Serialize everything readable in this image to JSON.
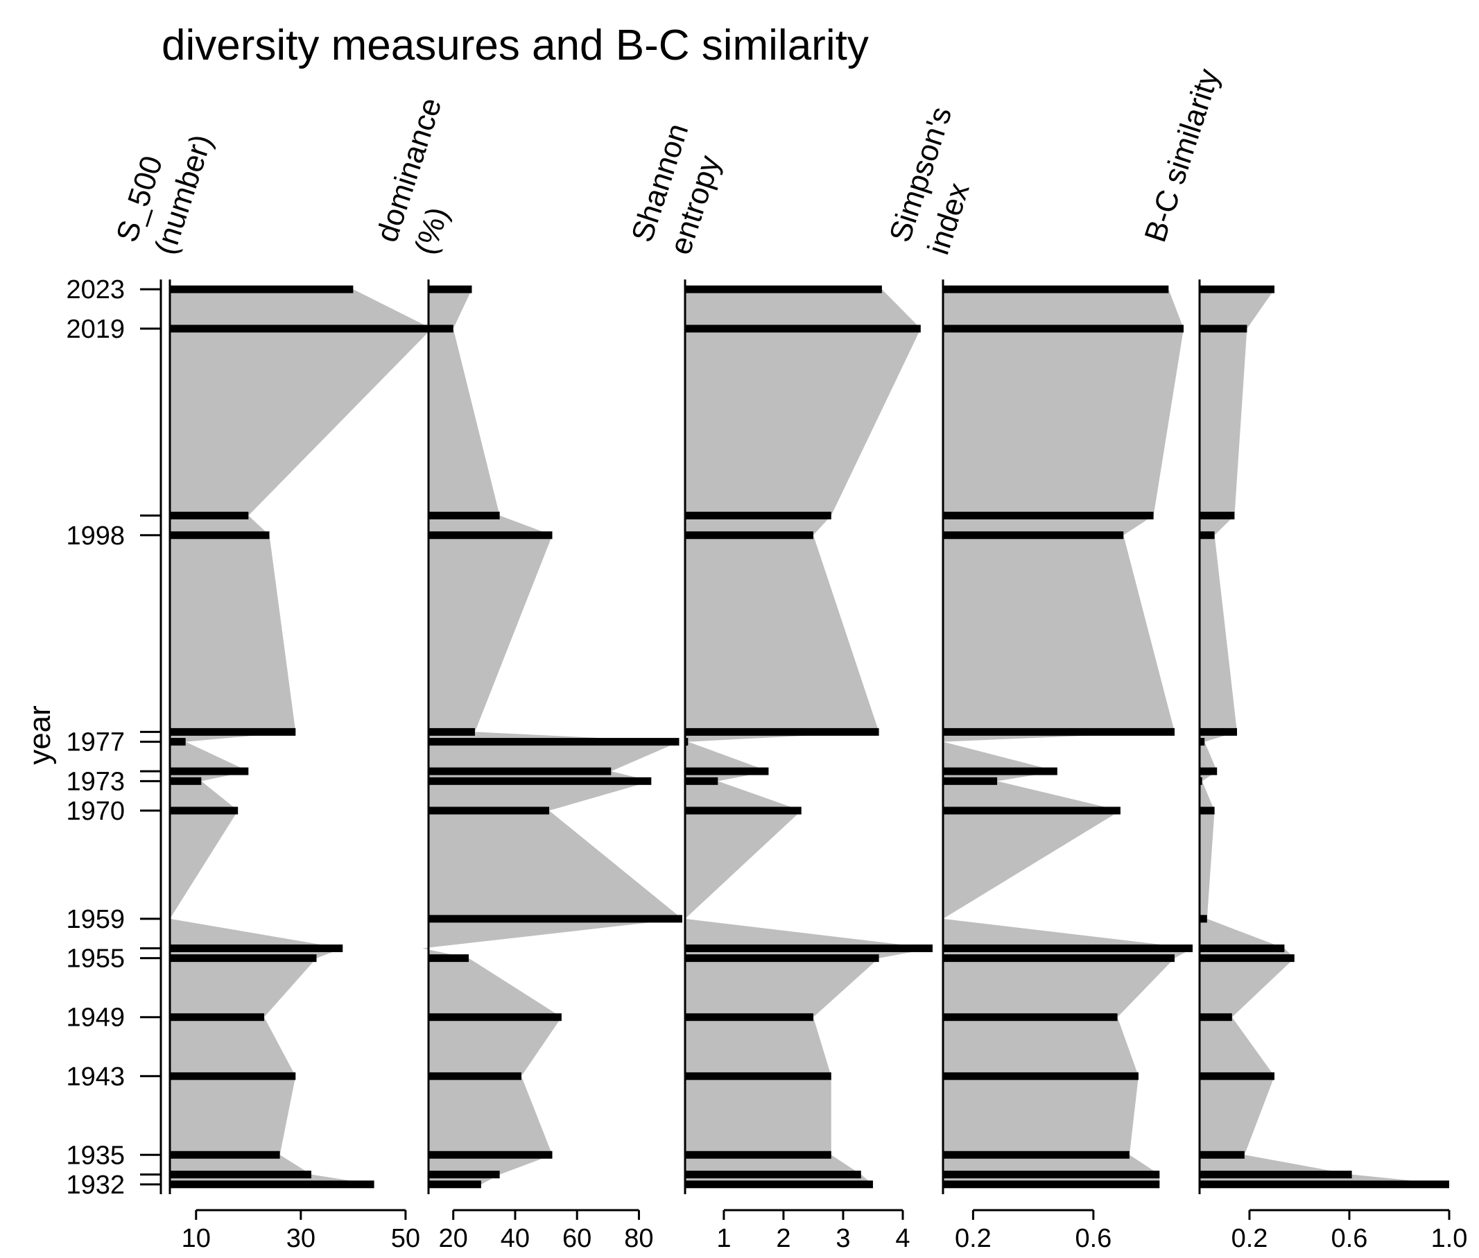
{
  "chart_data": {
    "type": "stratigraphic-area",
    "title": "diversity measures and B-C similarity",
    "ylabel": "year",
    "ylim": [
      1931,
      2024
    ],
    "y_ticks": [
      2023,
      2019,
      1998,
      1977,
      1973,
      1970,
      1959,
      1955,
      1949,
      1943,
      1935,
      1932
    ],
    "years": [
      2023,
      2019,
      2000,
      1998,
      1978,
      1977,
      1974,
      1973,
      1970,
      1959,
      1956,
      1955,
      1949,
      1943,
      1935,
      1933,
      1932
    ],
    "bar_color": "#000000",
    "area_color": "#bebebe",
    "panels": [
      {
        "label_lines": [
          "S_500",
          "(number)"
        ],
        "xlim": [
          5,
          52
        ],
        "ticks": [
          10,
          30,
          50
        ],
        "tick_labels": [
          "10",
          "30",
          "50"
        ],
        "values": [
          40,
          55,
          20,
          24,
          29,
          8,
          20,
          11,
          18,
          5,
          38,
          33,
          23,
          29,
          26,
          32,
          44
        ]
      },
      {
        "label_lines": [
          "dominance",
          "(%)"
        ],
        "xlim": [
          12,
          92
        ],
        "ticks": [
          20,
          40,
          60,
          80
        ],
        "tick_labels": [
          "20",
          "40",
          "60",
          "80"
        ],
        "values": [
          26,
          20,
          35,
          52,
          27,
          93,
          71,
          84,
          51,
          94,
          10,
          25,
          55,
          42,
          52,
          35,
          29
        ]
      },
      {
        "label_lines": [
          "Shannon",
          "entropy"
        ],
        "xlim": [
          0.35,
          4.5
        ],
        "ticks": [
          1,
          2,
          3,
          4
        ],
        "tick_labels": [
          "1",
          "2",
          "3",
          "4"
        ],
        "values": [
          3.65,
          4.3,
          2.8,
          2.5,
          3.6,
          0.4,
          1.75,
          0.9,
          2.3,
          0.35,
          4.5,
          3.6,
          2.5,
          2.8,
          2.8,
          3.3,
          3.5
        ]
      },
      {
        "label_lines": [
          "Simpson's",
          "index"
        ],
        "xlim": [
          0.1,
          0.93
        ],
        "ticks": [
          0.2,
          0.6
        ],
        "tick_labels": [
          "0.2",
          "0.6"
        ],
        "values": [
          0.85,
          0.9,
          0.8,
          0.7,
          0.87,
          0.1,
          0.48,
          0.28,
          0.69,
          0.1,
          0.93,
          0.87,
          0.68,
          0.75,
          0.72,
          0.82,
          0.82
        ]
      },
      {
        "label_lines": [
          "B-C similarity"
        ],
        "xlim": [
          0,
          1.0
        ],
        "ticks": [
          0.2,
          0.6,
          1.0
        ],
        "tick_labels": [
          "0.2",
          "0.6",
          "1.0"
        ],
        "values": [
          0.3,
          0.19,
          0.14,
          0.06,
          0.15,
          0.02,
          0.07,
          0.01,
          0.06,
          0.03,
          0.34,
          0.38,
          0.13,
          0.3,
          0.18,
          0.61,
          1.0
        ]
      }
    ]
  }
}
